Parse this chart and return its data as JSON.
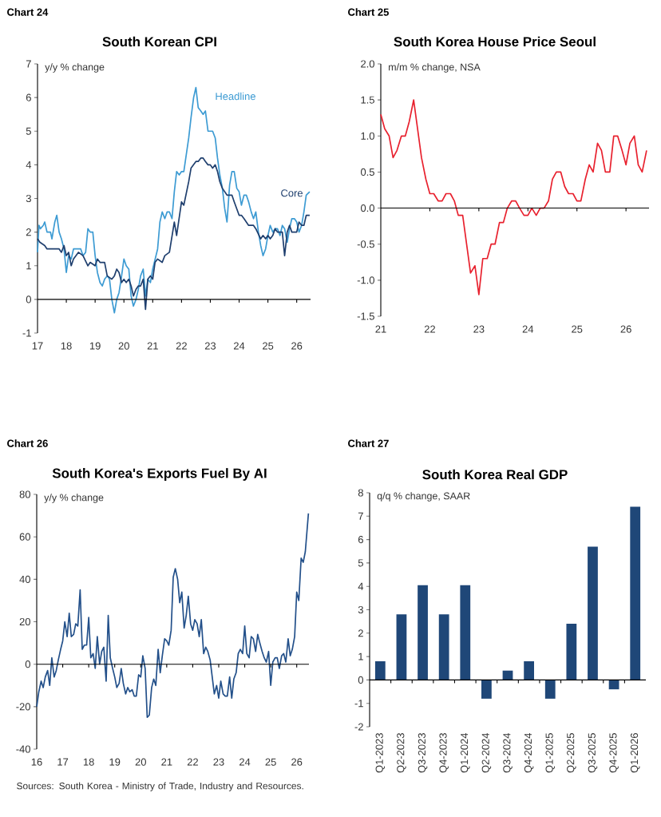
{
  "chart_data": [
    {
      "type": "line",
      "title": "South Korean CPI",
      "ylabel": "y/y % change",
      "annotations": [
        "Chart 24"
      ],
      "xlim": [
        2017,
        2026.48
      ],
      "ylim": [
        -1,
        7
      ],
      "yticks": [
        -1,
        0,
        1,
        2,
        3,
        4,
        5,
        6,
        7
      ],
      "xticks": [
        {
          "value": 2017,
          "label": "17"
        },
        {
          "value": 2018,
          "label": "18"
        },
        {
          "value": 2019,
          "label": "19"
        },
        {
          "value": 2020,
          "label": "20"
        },
        {
          "value": 2021,
          "label": "21"
        },
        {
          "value": 2022,
          "label": "22"
        },
        {
          "value": 2023,
          "label": "23"
        },
        {
          "value": 2024,
          "label": "24"
        },
        {
          "value": 2025,
          "label": "25"
        },
        {
          "value": 2026,
          "label": "26"
        }
      ],
      "series": [
        {
          "name": "Headline",
          "color": "#3d9bd3",
          "x": [
            2017.0,
            2017.05,
            2017.1,
            2017.2,
            2017.25,
            2017.33,
            2017.45,
            2017.5,
            2017.6,
            2017.67,
            2017.75,
            2017.83,
            2017.92,
            2018.0,
            2018.08,
            2018.17,
            2018.25,
            2018.5,
            2018.58,
            2018.67,
            2018.75,
            2018.83,
            2018.92,
            2019.0,
            2019.08,
            2019.17,
            2019.25,
            2019.33,
            2019.42,
            2019.5,
            2019.58,
            2019.67,
            2019.75,
            2019.83,
            2019.92,
            2020.0,
            2020.08,
            2020.17,
            2020.25,
            2020.33,
            2020.42,
            2020.5,
            2020.58,
            2020.67,
            2020.75,
            2020.83,
            2020.92,
            2021.0,
            2021.17,
            2021.25,
            2021.33,
            2021.42,
            2021.5,
            2021.58,
            2021.67,
            2021.75,
            2021.83,
            2021.92,
            2022.0,
            2022.08,
            2022.25,
            2022.33,
            2022.42,
            2022.5,
            2022.58,
            2022.67,
            2022.75,
            2022.83,
            2022.92,
            2023.08,
            2023.17,
            2023.25,
            2023.33,
            2023.42,
            2023.5,
            2023.58,
            2023.67,
            2023.75,
            2023.83,
            2023.92,
            2024.0,
            2024.08,
            2024.17,
            2024.25,
            2024.33,
            2024.42,
            2024.5,
            2024.58,
            2024.67,
            2024.75,
            2024.83,
            2024.92,
            2025.0,
            2025.08,
            2025.17,
            2025.25,
            2025.33,
            2025.42,
            2025.5,
            2025.58,
            2025.67,
            2025.75,
            2025.83,
            2025.92,
            2026.0,
            2026.08,
            2026.17,
            2026.25,
            2026.33,
            2026.45
          ],
          "values": [
            1.4,
            2.2,
            2.1,
            2.2,
            2.3,
            2.0,
            2.0,
            1.8,
            2.3,
            2.5,
            2.0,
            1.8,
            1.5,
            0.8,
            1.3,
            1.2,
            1.5,
            1.5,
            1.3,
            1.4,
            2.1,
            2.0,
            2.0,
            1.3,
            0.8,
            0.5,
            0.4,
            0.6,
            0.7,
            0.6,
            0.0,
            -0.4,
            0.0,
            0.2,
            0.7,
            1.2,
            1.0,
            0.9,
            0.1,
            -0.2,
            0.0,
            0.3,
            0.7,
            0.9,
            0.1,
            0.6,
            0.5,
            0.9,
            1.5,
            2.3,
            2.6,
            2.4,
            2.6,
            2.6,
            2.4,
            3.2,
            3.8,
            3.7,
            3.8,
            3.8,
            4.8,
            5.4,
            6.0,
            6.3,
            5.7,
            5.6,
            5.5,
            5.6,
            5.0,
            5.0,
            4.8,
            4.2,
            3.7,
            3.3,
            2.7,
            2.3,
            3.4,
            3.8,
            3.8,
            3.3,
            3.2,
            2.8,
            3.1,
            3.1,
            2.9,
            2.6,
            2.4,
            2.6,
            2.0,
            1.6,
            1.3,
            1.5,
            1.9,
            2.2,
            2.0,
            2.1,
            2.1,
            1.9,
            2.2,
            2.1,
            1.7,
            2.1,
            2.4,
            2.4,
            2.3,
            2.0,
            2.2,
            2.6,
            3.1,
            3.2
          ]
        },
        {
          "name": "Core",
          "color": "#1f3f6e",
          "x": [
            2017.0,
            2017.08,
            2017.25,
            2017.33,
            2017.75,
            2017.83,
            2017.92,
            2018.0,
            2018.08,
            2018.17,
            2018.25,
            2018.42,
            2018.58,
            2018.75,
            2018.83,
            2019.0,
            2019.08,
            2019.17,
            2019.33,
            2019.42,
            2019.58,
            2019.67,
            2019.75,
            2019.83,
            2019.92,
            2020.0,
            2020.08,
            2020.17,
            2020.25,
            2020.33,
            2020.42,
            2020.5,
            2020.58,
            2020.67,
            2020.75,
            2020.83,
            2020.92,
            2021.0,
            2021.08,
            2021.17,
            2021.33,
            2021.42,
            2021.58,
            2021.75,
            2021.83,
            2022.0,
            2022.08,
            2022.25,
            2022.33,
            2022.5,
            2022.58,
            2022.67,
            2022.75,
            2022.83,
            2022.92,
            2023.0,
            2023.08,
            2023.17,
            2023.25,
            2023.33,
            2023.42,
            2023.58,
            2023.75,
            2023.83,
            2024.0,
            2024.08,
            2024.17,
            2024.25,
            2024.33,
            2024.5,
            2024.58,
            2024.75,
            2024.83,
            2024.92,
            2025.0,
            2025.08,
            2025.17,
            2025.25,
            2025.33,
            2025.5,
            2025.58,
            2025.67,
            2025.75,
            2025.83,
            2026.0,
            2026.08,
            2026.17,
            2026.25,
            2026.33,
            2026.45
          ],
          "values": [
            1.8,
            1.7,
            1.6,
            1.5,
            1.5,
            1.4,
            1.6,
            1.3,
            1.4,
            1.0,
            1.2,
            1.4,
            1.3,
            1.0,
            1.1,
            1.0,
            1.2,
            1.1,
            1.1,
            0.7,
            0.6,
            0.7,
            0.9,
            0.8,
            0.5,
            0.6,
            0.5,
            0.6,
            0.4,
            0.1,
            0.3,
            0.4,
            0.4,
            0.6,
            -0.3,
            0.6,
            0.7,
            0.6,
            1.1,
            1.2,
            1.1,
            1.3,
            1.4,
            2.3,
            1.9,
            2.9,
            2.8,
            3.5,
            3.9,
            4.1,
            4.1,
            4.2,
            4.2,
            4.1,
            4.0,
            4.0,
            3.9,
            4.0,
            3.8,
            3.5,
            3.3,
            3.1,
            3.1,
            2.9,
            2.5,
            2.5,
            2.4,
            2.3,
            2.2,
            2.2,
            2.1,
            1.8,
            1.9,
            1.8,
            1.9,
            1.8,
            1.9,
            2.1,
            2.0,
            2.0,
            1.3,
            2.0,
            2.2,
            2.0,
            2.0,
            2.3,
            2.2,
            2.2,
            2.5,
            2.5
          ]
        }
      ]
    },
    {
      "type": "line",
      "title": "South Korea House Price Seoul",
      "ylabel": "m/m % change, NSA",
      "annotations": [
        "Chart 25"
      ],
      "xlim": [
        2021,
        2026.47
      ],
      "ylim": [
        -1.5,
        2
      ],
      "yticks": [
        {
          "value": -1.5,
          "label": "-1.5"
        },
        {
          "value": -1,
          "label": "-1.0"
        },
        {
          "value": -0.5,
          "label": "-0.5"
        },
        {
          "value": 0,
          "label": "0.0"
        },
        {
          "value": 0.5,
          "label": "0.5"
        },
        {
          "value": 1,
          "label": "1.0"
        },
        {
          "value": 1.5,
          "label": "1.5"
        },
        {
          "value": 2,
          "label": "2.0"
        }
      ],
      "xticks": [
        {
          "value": 2021,
          "label": "21"
        },
        {
          "value": 2022,
          "label": "22"
        },
        {
          "value": 2023,
          "label": "23"
        },
        {
          "value": 2024,
          "label": "24"
        },
        {
          "value": 2025,
          "label": "25"
        },
        {
          "value": 2026,
          "label": "26"
        }
      ],
      "series": [
        {
          "color": "#e8212e",
          "x": [
            2021.0,
            2021.08,
            2021.17,
            2021.25,
            2021.33,
            2021.42,
            2021.5,
            2021.58,
            2021.67,
            2021.75,
            2021.83,
            2021.92,
            2022.0,
            2022.08,
            2022.17,
            2022.25,
            2022.33,
            2022.42,
            2022.5,
            2022.58,
            2022.67,
            2022.75,
            2022.83,
            2022.92,
            2023.0,
            2023.08,
            2023.17,
            2023.25,
            2023.33,
            2023.42,
            2023.5,
            2023.58,
            2023.67,
            2023.75,
            2023.83,
            2023.92,
            2024.0,
            2024.08,
            2024.17,
            2024.25,
            2024.33,
            2024.42,
            2024.5,
            2024.58,
            2024.67,
            2024.75,
            2024.83,
            2024.92,
            2025.0,
            2025.08,
            2025.17,
            2025.25,
            2025.33,
            2025.42,
            2025.5,
            2025.58,
            2025.67,
            2025.75,
            2025.83,
            2025.92,
            2026.0,
            2026.08,
            2026.17,
            2026.25,
            2026.33,
            2026.42
          ],
          "values": [
            1.3,
            1.1,
            1.0,
            0.7,
            0.8,
            1.0,
            1.0,
            1.2,
            1.5,
            1.1,
            0.7,
            0.4,
            0.2,
            0.2,
            0.1,
            0.1,
            0.2,
            0.2,
            0.1,
            -0.1,
            -0.1,
            -0.5,
            -0.9,
            -0.8,
            -1.2,
            -0.7,
            -0.7,
            -0.5,
            -0.5,
            -0.2,
            -0.2,
            0.0,
            0.1,
            0.1,
            0.0,
            -0.1,
            -0.1,
            0.0,
            -0.1,
            0.0,
            0.0,
            0.1,
            0.4,
            0.5,
            0.5,
            0.3,
            0.2,
            0.2,
            0.1,
            0.1,
            0.4,
            0.6,
            0.5,
            0.9,
            0.8,
            0.5,
            0.5,
            1.0,
            1.0,
            0.8,
            0.6,
            0.9,
            1.0,
            0.6,
            0.5,
            0.8
          ]
        }
      ]
    },
    {
      "type": "line",
      "title": "South Korea's Exports Fuel By AI",
      "ylabel": "y/y % change",
      "annotations": [
        "Chart 26",
        "Sources: South Korea - Ministry of Trade, Industry and Resources."
      ],
      "xlim": [
        2016,
        2026.47
      ],
      "ylim": [
        -40,
        80
      ],
      "yticks": [
        -40,
        -20,
        0,
        20,
        40,
        60,
        80
      ],
      "xticks": [
        {
          "value": 2016,
          "label": "16"
        },
        {
          "value": 2017,
          "label": "17"
        },
        {
          "value": 2018,
          "label": "18"
        },
        {
          "value": 2019,
          "label": "19"
        },
        {
          "value": 2020,
          "label": "20"
        },
        {
          "value": 2021,
          "label": "21"
        },
        {
          "value": 2022,
          "label": "22"
        },
        {
          "value": 2023,
          "label": "23"
        },
        {
          "value": 2024,
          "label": "24"
        },
        {
          "value": 2025,
          "label": "25"
        },
        {
          "value": 2026,
          "label": "26"
        }
      ],
      "series": [
        {
          "color": "#23508a",
          "x": [
            2016.0,
            2016.08,
            2016.17,
            2016.25,
            2016.33,
            2016.42,
            2016.5,
            2016.58,
            2016.67,
            2016.75,
            2016.83,
            2016.92,
            2017.0,
            2017.08,
            2017.17,
            2017.25,
            2017.33,
            2017.42,
            2017.5,
            2017.58,
            2017.67,
            2017.75,
            2017.83,
            2017.92,
            2018.0,
            2018.08,
            2018.17,
            2018.25,
            2018.33,
            2018.42,
            2018.5,
            2018.58,
            2018.67,
            2018.75,
            2018.83,
            2018.92,
            2019.0,
            2019.08,
            2019.17,
            2019.25,
            2019.33,
            2019.42,
            2019.5,
            2019.58,
            2019.67,
            2019.75,
            2019.83,
            2019.92,
            2020.0,
            2020.08,
            2020.17,
            2020.25,
            2020.33,
            2020.42,
            2020.5,
            2020.58,
            2020.67,
            2020.75,
            2020.83,
            2020.92,
            2021.0,
            2021.08,
            2021.17,
            2021.25,
            2021.33,
            2021.42,
            2021.5,
            2021.58,
            2021.67,
            2021.75,
            2021.83,
            2021.92,
            2022.0,
            2022.08,
            2022.17,
            2022.25,
            2022.33,
            2022.42,
            2022.5,
            2022.58,
            2022.67,
            2022.75,
            2022.83,
            2022.92,
            2023.0,
            2023.08,
            2023.17,
            2023.25,
            2023.33,
            2023.42,
            2023.5,
            2023.58,
            2023.67,
            2023.75,
            2023.83,
            2023.92,
            2024.0,
            2024.08,
            2024.17,
            2024.25,
            2024.33,
            2024.42,
            2024.5,
            2024.58,
            2024.67,
            2024.75,
            2024.83,
            2024.92,
            2025.0,
            2025.08,
            2025.17,
            2025.25,
            2025.33,
            2025.42,
            2025.5,
            2025.58,
            2025.67,
            2025.75,
            2025.83,
            2025.92,
            2026.0,
            2026.08,
            2026.17,
            2026.25,
            2026.33,
            2026.45
          ],
          "values": [
            -20,
            -13,
            -8,
            -11,
            -6,
            -3,
            -10,
            3,
            -6,
            -3,
            2,
            7,
            11,
            20,
            13,
            24,
            13,
            14,
            19,
            18,
            35,
            7,
            9,
            9,
            22,
            3,
            5,
            -2,
            13,
            0,
            6,
            8,
            -8,
            23,
            3,
            -2,
            -6,
            -11,
            -9,
            -2,
            -9,
            -14,
            -11,
            -13,
            -12,
            -15,
            -15,
            -5,
            -6,
            4,
            -2,
            -25,
            -24,
            -11,
            -7,
            -10,
            7,
            -4,
            4,
            12,
            11,
            9,
            16,
            41,
            45,
            40,
            29,
            34,
            17,
            23,
            32,
            19,
            16,
            21,
            19,
            13,
            21,
            5,
            8,
            6,
            2,
            -6,
            -14,
            -10,
            -16,
            -8,
            -14,
            -15,
            -15,
            -6,
            -16,
            -7,
            -4,
            5,
            7,
            5,
            18,
            5,
            3,
            13,
            12,
            6,
            14,
            10,
            6,
            3,
            1,
            6,
            -10,
            1,
            3,
            3,
            -2,
            4,
            5,
            1,
            12,
            4,
            7,
            13,
            34,
            30,
            50,
            48,
            53,
            71
          ]
        }
      ]
    },
    {
      "type": "bar",
      "title": "South Korea Real GDP",
      "ylabel": "q/q % change, SAAR",
      "annotations": [
        "Chart 27"
      ],
      "ylim": [
        -2,
        8
      ],
      "yticks": [
        -2,
        -1,
        0,
        1,
        2,
        3,
        4,
        5,
        6,
        7,
        8
      ],
      "categories": [
        "Q1-2023",
        "Q2-2023",
        "Q3-2023",
        "Q4-2023",
        "Q1-2024",
        "Q2-2024",
        "Q3-2024",
        "Q4-2024",
        "Q1-2025",
        "Q2-2025",
        "Q3-2025",
        "Q4-2025",
        "Q1-2026"
      ],
      "values": [
        0.8,
        2.8,
        4.05,
        2.8,
        4.05,
        -0.8,
        0.4,
        0.8,
        -0.8,
        2.4,
        5.7,
        -0.4,
        7.4
      ],
      "color": "#1f4778"
    }
  ]
}
